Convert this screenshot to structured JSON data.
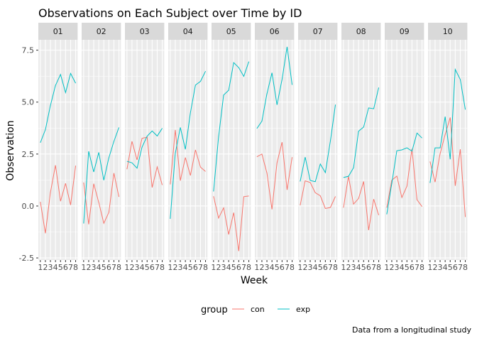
{
  "chart_data": {
    "type": "line",
    "title": "Observations on Each Subject over Time by ID",
    "xlabel": "Week",
    "ylabel": "Observation",
    "caption": "Data from a longitudinal study",
    "x": [
      1,
      2,
      3,
      4,
      5,
      6,
      7,
      8
    ],
    "x_tick_labels": [
      "1",
      "2",
      "3",
      "4",
      "5",
      "6",
      "7",
      "8"
    ],
    "ylim": [
      -2.6,
      8.0
    ],
    "y_ticks": [
      -2.5,
      0.0,
      2.5,
      5.0,
      7.5
    ],
    "y_tick_labels": [
      "-2.5",
      "0.0",
      "2.5",
      "5.0",
      "7.5"
    ],
    "grid": true,
    "legend": {
      "title": "group",
      "position": "bottom",
      "entries": [
        {
          "label": "con",
          "color": "#F8766D"
        },
        {
          "label": "exp",
          "color": "#00BFC4"
        }
      ]
    },
    "panels": [
      {
        "id": "01",
        "con": [
          0.2,
          -1.31,
          0.66,
          1.96,
          0.23,
          1.09,
          0.05,
          1.94
        ],
        "exp": [
          3.05,
          3.67,
          4.84,
          5.8,
          6.33,
          5.46,
          6.38,
          5.91
        ]
      },
      {
        "id": "02",
        "con": [
          1.13,
          -0.88,
          1.07,
          0.17,
          -0.83,
          -0.31,
          1.58,
          0.44
        ],
        "exp": [
          -0.84,
          2.63,
          1.64,
          2.58,
          1.24,
          2.32,
          3.11,
          3.78
        ]
      },
      {
        "id": "03",
        "con": [
          1.77,
          3.11,
          2.22,
          3.26,
          3.31,
          0.89,
          1.88,
          1.01
        ],
        "exp": [
          2.15,
          2.08,
          1.82,
          2.84,
          3.36,
          3.61,
          3.37,
          3.74
        ]
      },
      {
        "id": "04",
        "con": [
          1.04,
          3.66,
          1.22,
          2.33,
          1.47,
          2.7,
          1.87,
          1.66
        ],
        "exp": [
          -0.62,
          2.54,
          3.78,
          2.73,
          4.49,
          5.82,
          6.0,
          6.49
        ]
      },
      {
        "id": "05",
        "con": [
          0.47,
          -0.58,
          -0.09,
          -1.37,
          -0.32,
          -2.17,
          0.45,
          0.48
        ],
        "exp": [
          0.7,
          3.33,
          5.34,
          5.57,
          6.9,
          6.66,
          6.24,
          6.95
        ]
      },
      {
        "id": "06",
        "con": [
          2.37,
          2.5,
          1.59,
          -0.16,
          2.08,
          3.07,
          0.78,
          2.35
        ],
        "exp": [
          3.73,
          4.08,
          5.4,
          6.41,
          4.87,
          6.09,
          7.66,
          5.83
        ]
      },
      {
        "id": "07",
        "con": [
          0.03,
          1.21,
          1.13,
          0.64,
          0.49,
          -0.12,
          -0.07,
          0.46
        ],
        "exp": [
          1.18,
          2.35,
          1.23,
          1.17,
          2.02,
          1.61,
          3.13,
          4.88
        ]
      },
      {
        "id": "08",
        "con": [
          -0.08,
          1.42,
          0.09,
          0.36,
          1.18,
          -1.16,
          0.33,
          -0.44
        ],
        "exp": [
          1.37,
          1.43,
          1.84,
          3.6,
          3.8,
          4.72,
          4.68,
          5.7
        ]
      },
      {
        "id": "09",
        "con": [
          -0.08,
          1.24,
          1.44,
          0.41,
          0.95,
          2.75,
          0.3,
          -0.03
        ],
        "exp": [
          -0.4,
          1.08,
          2.66,
          2.7,
          2.8,
          2.64,
          3.51,
          3.27
        ]
      },
      {
        "id": "10",
        "con": [
          2.14,
          1.15,
          2.52,
          3.44,
          4.26,
          0.97,
          2.73,
          -0.53
        ],
        "exp": [
          1.11,
          2.8,
          2.8,
          4.3,
          2.25,
          6.57,
          6.09,
          4.64
        ]
      }
    ]
  }
}
